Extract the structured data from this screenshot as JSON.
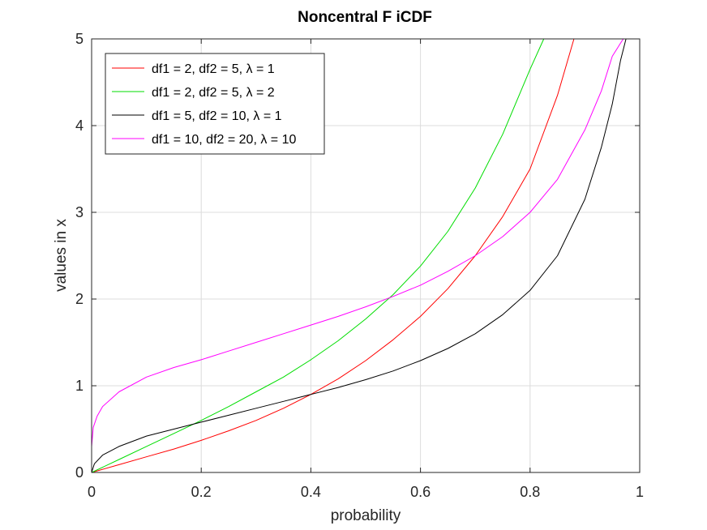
{
  "chart_data": {
    "type": "line",
    "title": "Noncentral F iCDF",
    "xlabel": "probability",
    "ylabel": "values in x",
    "xlim": [
      0,
      1
    ],
    "ylim": [
      0,
      5
    ],
    "grid": true,
    "legend_position": "top-left",
    "x_ticks": [
      0,
      0.2,
      0.4,
      0.6,
      0.8,
      1
    ],
    "x_tick_labels": [
      "0",
      "0.2",
      "0.4",
      "0.6",
      "0.8",
      "1"
    ],
    "y_ticks": [
      0,
      1,
      2,
      3,
      4,
      5
    ],
    "y_tick_labels": [
      "0",
      "1",
      "2",
      "3",
      "4",
      "5"
    ],
    "series": [
      {
        "name": "df1 = 2, df2 = 5, λ = 1",
        "color": "#ff0000",
        "x": [
          0,
          0.05,
          0.1,
          0.15,
          0.2,
          0.25,
          0.3,
          0.35,
          0.4,
          0.45,
          0.5,
          0.55,
          0.6,
          0.65,
          0.7,
          0.75,
          0.8,
          0.85,
          0.88
        ],
        "y": [
          0,
          0.09,
          0.18,
          0.27,
          0.37,
          0.48,
          0.6,
          0.74,
          0.9,
          1.08,
          1.29,
          1.53,
          1.8,
          2.12,
          2.5,
          2.95,
          3.5,
          4.35,
          5.0
        ]
      },
      {
        "name": "df1 = 2, df2 = 5, λ = 2",
        "color": "#00dd00",
        "x": [
          0,
          0.05,
          0.1,
          0.15,
          0.2,
          0.25,
          0.3,
          0.35,
          0.4,
          0.45,
          0.5,
          0.55,
          0.6,
          0.65,
          0.7,
          0.75,
          0.8,
          0.825
        ],
        "y": [
          0,
          0.15,
          0.3,
          0.45,
          0.6,
          0.76,
          0.93,
          1.1,
          1.3,
          1.52,
          1.77,
          2.05,
          2.38,
          2.78,
          3.28,
          3.9,
          4.65,
          5.0
        ]
      },
      {
        "name": "df1 = 5, df2 = 10, λ = 1",
        "color": "#000000",
        "x": [
          0,
          0.005,
          0.02,
          0.05,
          0.1,
          0.15,
          0.2,
          0.25,
          0.3,
          0.35,
          0.4,
          0.45,
          0.5,
          0.55,
          0.6,
          0.65,
          0.7,
          0.75,
          0.8,
          0.85,
          0.9,
          0.93,
          0.95,
          0.965,
          0.975
        ],
        "y": [
          0,
          0.1,
          0.2,
          0.3,
          0.42,
          0.5,
          0.58,
          0.66,
          0.74,
          0.82,
          0.9,
          0.98,
          1.07,
          1.17,
          1.29,
          1.43,
          1.6,
          1.82,
          2.1,
          2.5,
          3.15,
          3.75,
          4.25,
          4.75,
          5.0
        ]
      },
      {
        "name": "df1 = 10, df2 = 20, λ = 10",
        "color": "#ff00ff",
        "x": [
          0,
          0.003,
          0.01,
          0.02,
          0.05,
          0.1,
          0.15,
          0.2,
          0.25,
          0.3,
          0.35,
          0.4,
          0.45,
          0.5,
          0.55,
          0.6,
          0.65,
          0.7,
          0.75,
          0.8,
          0.85,
          0.9,
          0.93,
          0.95,
          0.97
        ],
        "y": [
          0.3,
          0.52,
          0.65,
          0.76,
          0.93,
          1.1,
          1.21,
          1.3,
          1.4,
          1.5,
          1.6,
          1.7,
          1.8,
          1.91,
          2.03,
          2.16,
          2.32,
          2.5,
          2.72,
          3.0,
          3.38,
          3.95,
          4.4,
          4.8,
          5.0
        ]
      }
    ]
  }
}
